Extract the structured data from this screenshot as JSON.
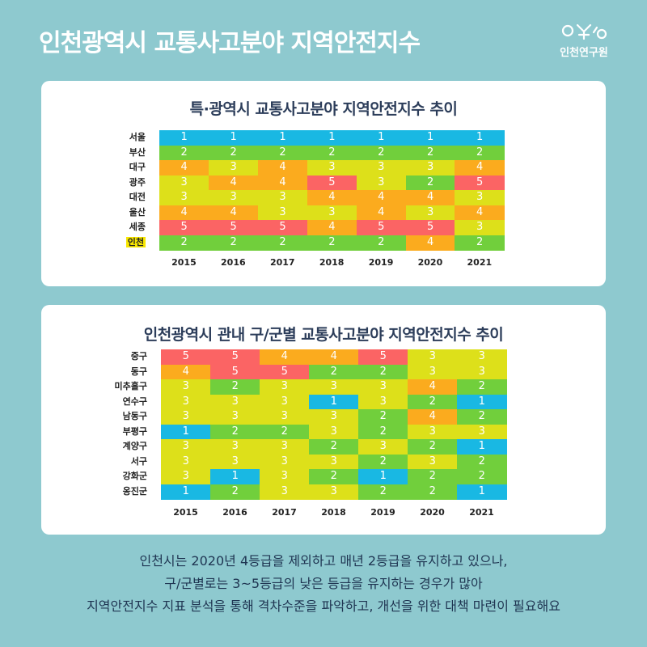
{
  "page": {
    "title": "인천광역시 교통사고분야 지역안전지수",
    "logo_text": "인천연구원"
  },
  "colors": {
    "1": "#19b8e3",
    "2": "#71cf3c",
    "3": "#dde01a",
    "4": "#fbab1e",
    "5": "#fb6464",
    "background": "#8ec9cf",
    "highlight": "#f7e600"
  },
  "chart_data": [
    {
      "type": "heatmap",
      "title": "특·광역시 교통사고분야 지역안전지수 추이",
      "x": [
        "2015",
        "2016",
        "2017",
        "2018",
        "2019",
        "2020",
        "2021"
      ],
      "rows": [
        {
          "name": "서울",
          "values": [
            1,
            1,
            1,
            1,
            1,
            1,
            1
          ]
        },
        {
          "name": "부산",
          "values": [
            2,
            2,
            2,
            2,
            2,
            2,
            2
          ]
        },
        {
          "name": "대구",
          "values": [
            4,
            3,
            4,
            3,
            3,
            3,
            4
          ]
        },
        {
          "name": "광주",
          "values": [
            3,
            4,
            4,
            5,
            3,
            2,
            5
          ]
        },
        {
          "name": "대전",
          "values": [
            3,
            3,
            3,
            4,
            4,
            4,
            3
          ]
        },
        {
          "name": "울산",
          "values": [
            4,
            4,
            3,
            3,
            4,
            3,
            4
          ]
        },
        {
          "name": "세종",
          "values": [
            5,
            5,
            5,
            4,
            5,
            5,
            3
          ]
        },
        {
          "name": "인천",
          "values": [
            2,
            2,
            2,
            2,
            2,
            4,
            2
          ],
          "highlight": true
        }
      ]
    },
    {
      "type": "heatmap",
      "title": "인천광역시 관내 구/군별 교통사고분야 지역안전지수 추이",
      "x": [
        "2015",
        "2016",
        "2017",
        "2018",
        "2019",
        "2020",
        "2021"
      ],
      "rows": [
        {
          "name": "중구",
          "values": [
            5,
            5,
            4,
            4,
            5,
            3,
            3
          ]
        },
        {
          "name": "동구",
          "values": [
            4,
            5,
            5,
            2,
            2,
            3,
            3
          ]
        },
        {
          "name": "미추홀구",
          "values": [
            3,
            2,
            3,
            3,
            3,
            4,
            2
          ]
        },
        {
          "name": "연수구",
          "values": [
            3,
            3,
            3,
            1,
            3,
            2,
            1
          ]
        },
        {
          "name": "남동구",
          "values": [
            3,
            3,
            3,
            3,
            2,
            4,
            2
          ]
        },
        {
          "name": "부평구",
          "values": [
            1,
            2,
            2,
            3,
            2,
            3,
            3
          ]
        },
        {
          "name": "계양구",
          "values": [
            3,
            3,
            3,
            2,
            3,
            2,
            1
          ]
        },
        {
          "name": "서구",
          "values": [
            3,
            3,
            3,
            3,
            2,
            3,
            2
          ]
        },
        {
          "name": "강화군",
          "values": [
            3,
            1,
            3,
            2,
            1,
            2,
            2
          ]
        },
        {
          "name": "옹진군",
          "values": [
            1,
            2,
            3,
            3,
            2,
            2,
            1
          ]
        }
      ]
    }
  ],
  "footer": {
    "line1": "인천시는 2020년 4등급을 제외하고 매년 2등급을 유지하고 있으나,",
    "line2": "구/군별로는 3~5등급의 낮은 등급을 유지하는 경우가 많아",
    "line3": "지역안전지수 지표 분석을 통해 격차수준을 파악하고, 개선을 위한 대책 마련이 필요해요"
  }
}
